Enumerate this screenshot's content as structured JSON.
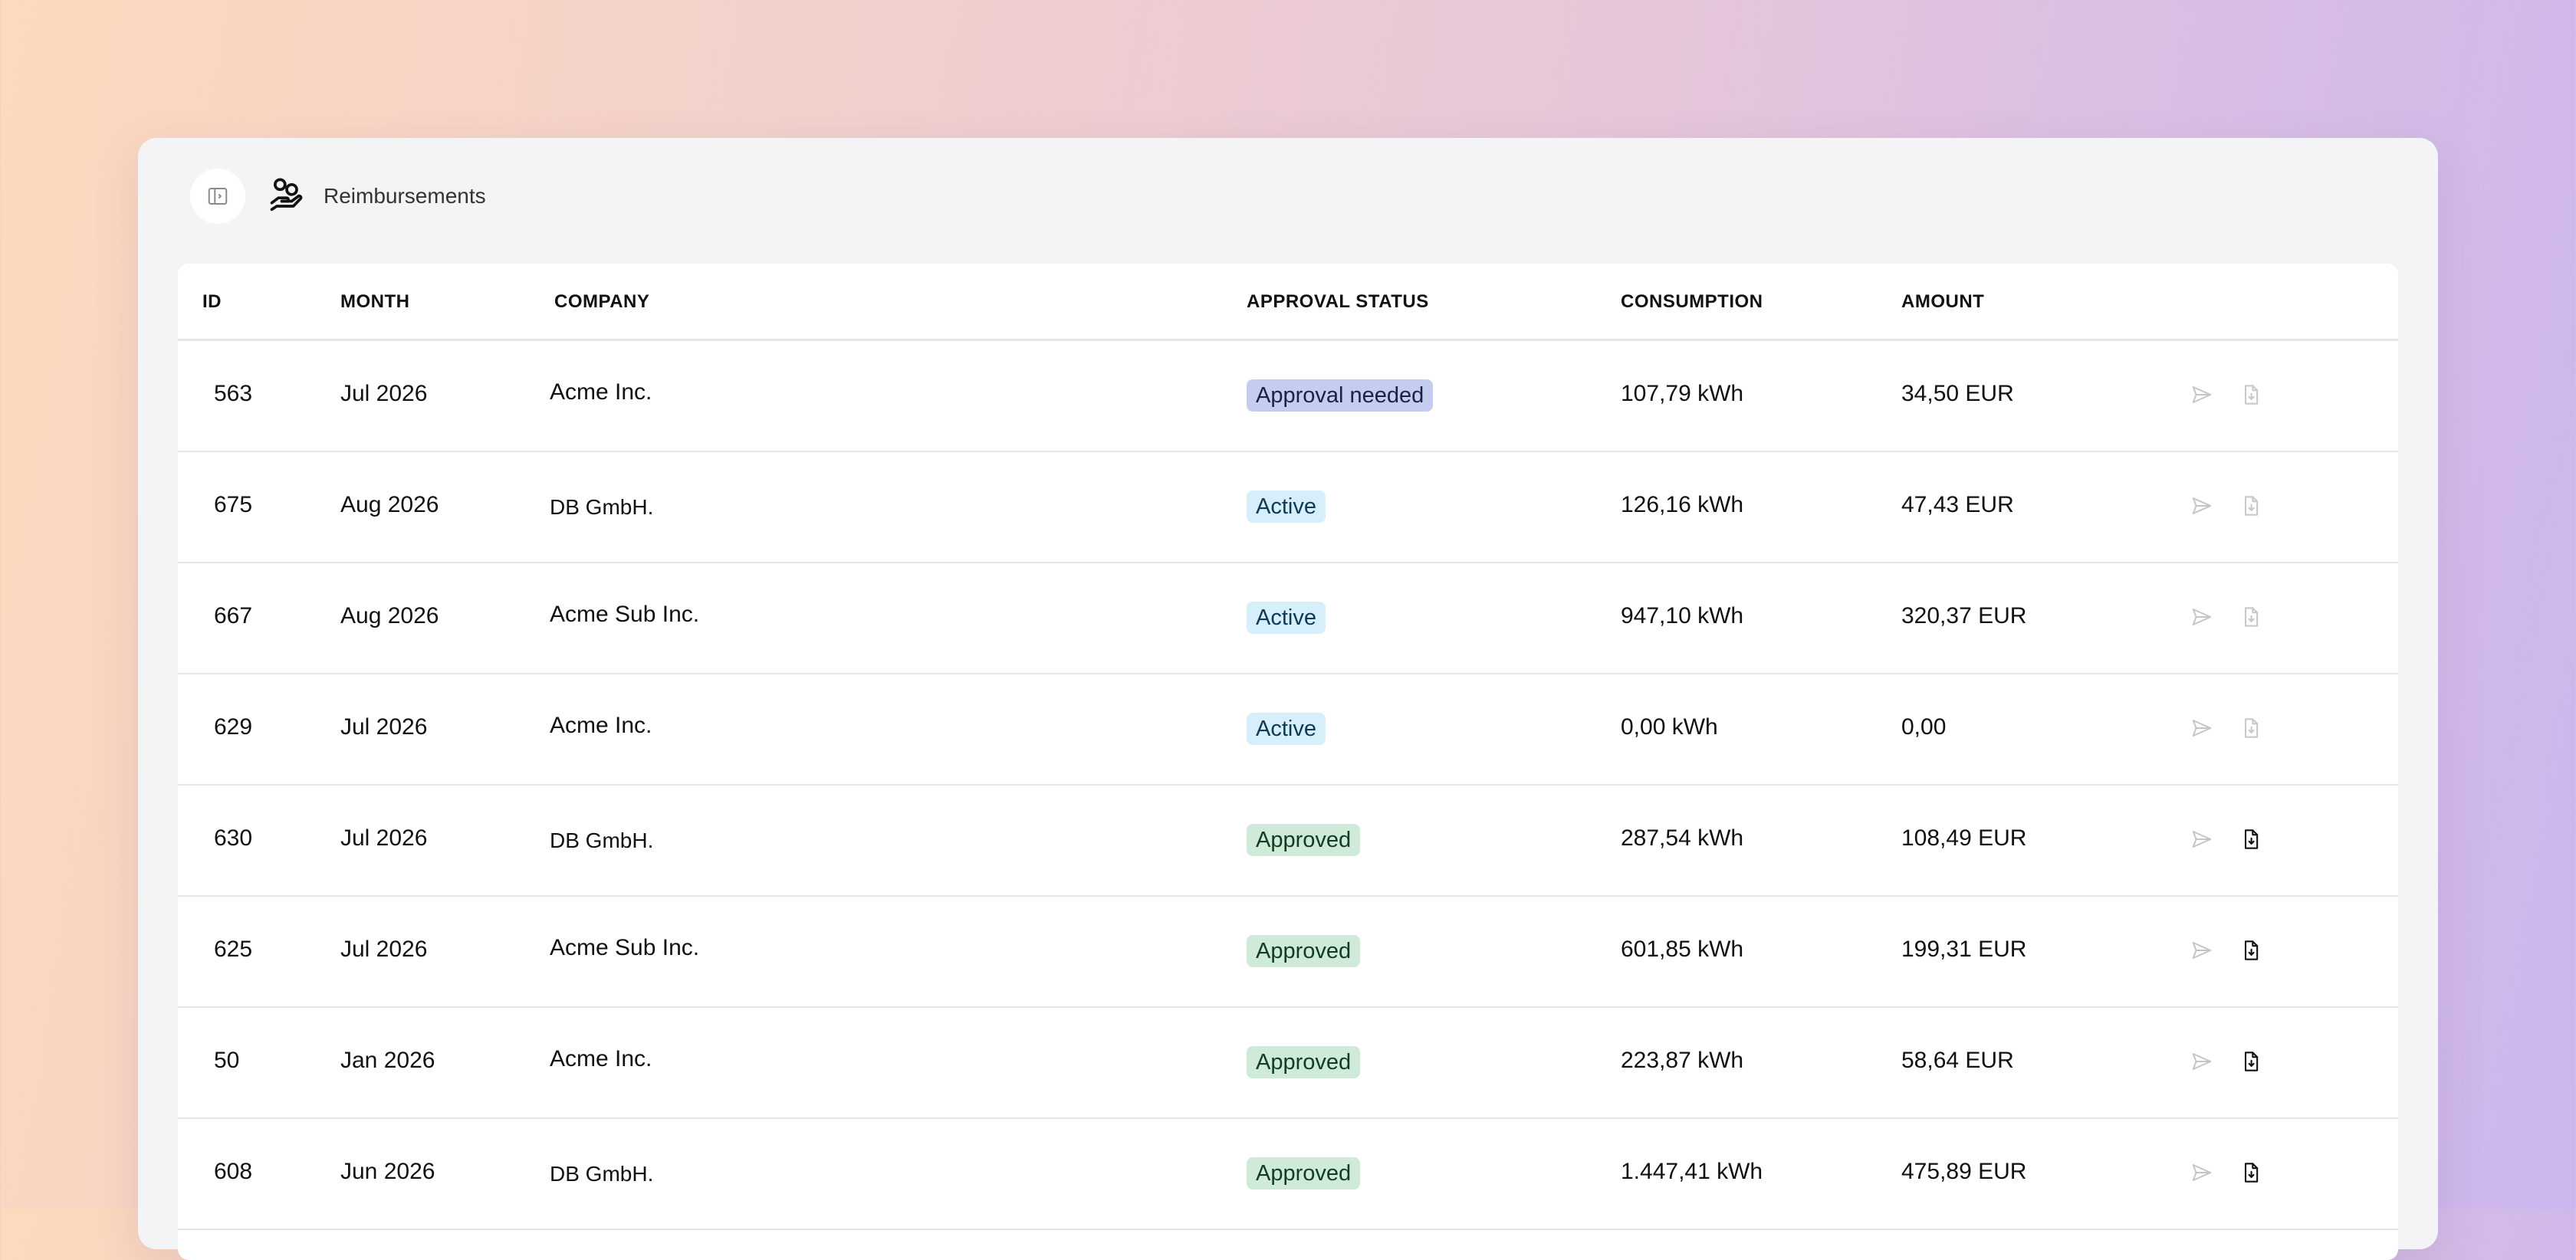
{
  "header": {
    "title": "Reimbursements"
  },
  "table": {
    "columns": {
      "id": "ID",
      "month": "MONTH",
      "company": "COMPANY",
      "status": "APPROVAL STATUS",
      "consumption": "CONSUMPTION",
      "amount": "AMOUNT"
    },
    "rows": [
      {
        "id": "563",
        "month": "Jul 2026",
        "company": "Acme Inc.",
        "status": "Approval needed",
        "status_kind": "needed",
        "consumption": "107,79 kWh",
        "amount": "34,50 EUR",
        "doc_enabled": false
      },
      {
        "id": "675",
        "month": "Aug 2026",
        "company": "DB GmbH.",
        "status": "Active",
        "status_kind": "active",
        "consumption": "126,16 kWh",
        "amount": "47,43 EUR",
        "doc_enabled": false
      },
      {
        "id": "667",
        "month": "Aug 2026",
        "company": "Acme Sub Inc.",
        "status": "Active",
        "status_kind": "active",
        "consumption": "947,10 kWh",
        "amount": "320,37 EUR",
        "doc_enabled": false
      },
      {
        "id": "629",
        "month": "Jul 2026",
        "company": "Acme Inc.",
        "status": "Active",
        "status_kind": "active",
        "consumption": "0,00 kWh",
        "amount": "0,00",
        "doc_enabled": false
      },
      {
        "id": "630",
        "month": "Jul 2026",
        "company": "DB GmbH.",
        "status": "Approved",
        "status_kind": "approved",
        "consumption": "287,54 kWh",
        "amount": "108,49 EUR",
        "doc_enabled": true
      },
      {
        "id": "625",
        "month": "Jul 2026",
        "company": "Acme Sub Inc.",
        "status": "Approved",
        "status_kind": "approved",
        "consumption": "601,85 kWh",
        "amount": "199,31 EUR",
        "doc_enabled": true
      },
      {
        "id": "50",
        "month": "Jan 2026",
        "company": "Acme Inc.",
        "status": "Approved",
        "status_kind": "approved",
        "consumption": "223,87 kWh",
        "amount": "58,64 EUR",
        "doc_enabled": true
      },
      {
        "id": "608",
        "month": "Jun 2026",
        "company": "DB GmbH.",
        "status": "Approved",
        "status_kind": "approved",
        "consumption": "1.447,41 kWh",
        "amount": "475,89 EUR",
        "doc_enabled": true
      }
    ]
  },
  "icons": {
    "toggle": "sidebar-toggle-icon",
    "app": "hand-coins-icon",
    "send": "send-icon",
    "doc": "file-download-icon"
  },
  "colors": {
    "needed": "#c4cdef",
    "active": "#d7eefb",
    "approved": "#cfead9"
  }
}
